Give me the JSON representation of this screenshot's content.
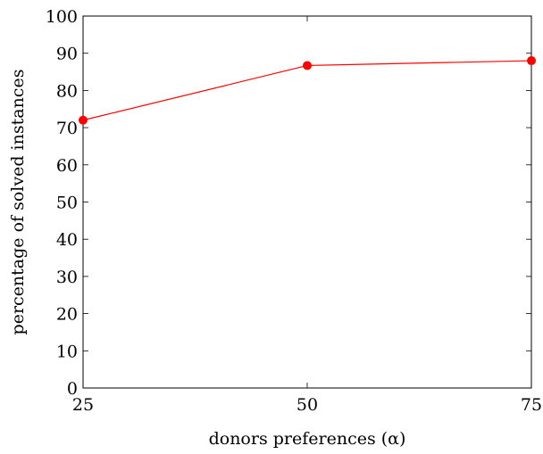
{
  "chart_data": {
    "type": "line",
    "x": [
      25,
      50,
      75
    ],
    "series": [
      {
        "values": [
          72,
          86.7,
          88
        ],
        "color": "#ff0000"
      }
    ],
    "xlabel": "donors preferences (α)",
    "ylabel": "percentage of solved instances",
    "xlim": [
      25,
      75
    ],
    "ylim": [
      0,
      100
    ],
    "xticks": [
      25,
      50,
      75
    ],
    "yticks": [
      0,
      10,
      20,
      30,
      40,
      50,
      60,
      70,
      80,
      90,
      100
    ],
    "grid": false,
    "marker": "circle"
  }
}
